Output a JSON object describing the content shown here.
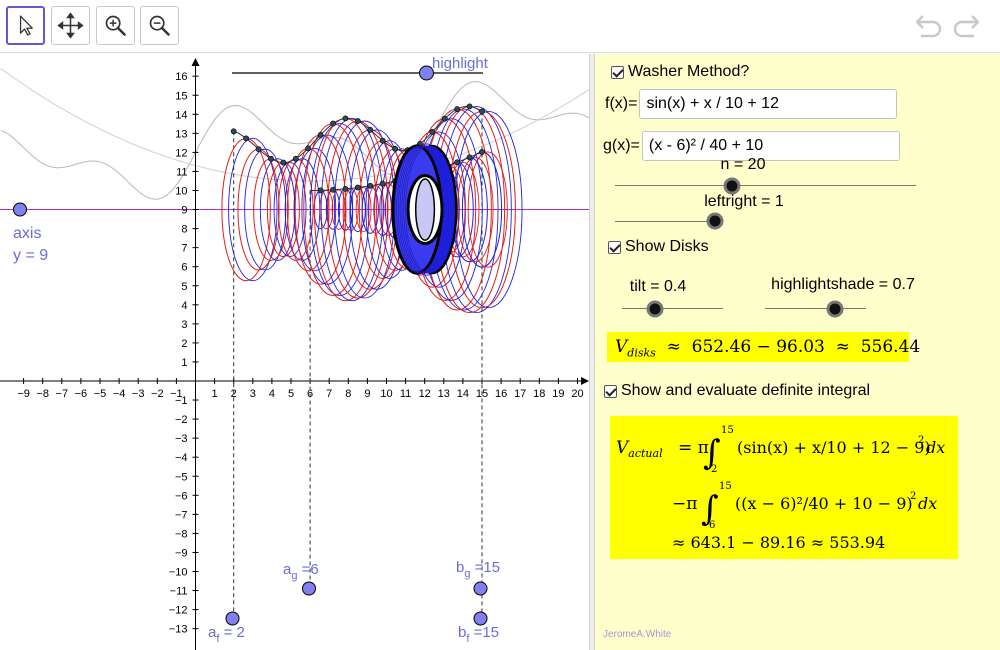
{
  "toolbar": {
    "tools": [
      {
        "name": "move-tool",
        "icon": "arrow-cursor-icon",
        "active": true
      },
      {
        "name": "move-graphics-tool",
        "icon": "four-way-arrow-icon",
        "active": false
      },
      {
        "name": "zoom-in-tool",
        "icon": "zoom-in-icon",
        "active": false
      },
      {
        "name": "zoom-out-tool",
        "icon": "zoom-out-icon",
        "active": false
      }
    ],
    "history": [
      "undo-icon",
      "redo-icon"
    ]
  },
  "graphics": {
    "x_ticks": [
      "−9",
      "−8",
      "−7",
      "−6",
      "−5",
      "−4",
      "−3",
      "−2",
      "−1",
      "1",
      "2",
      "3",
      "4",
      "5",
      "6",
      "7",
      "8",
      "9",
      "10",
      "11",
      "12",
      "13",
      "14",
      "15",
      "16",
      "17",
      "18",
      "19",
      "20"
    ],
    "y_ticks": [
      "16",
      "15",
      "14",
      "13",
      "12",
      "11",
      "10",
      "9",
      "8",
      "7",
      "6",
      "5",
      "4",
      "3",
      "2",
      "1",
      "−1",
      "−2",
      "−3",
      "−4",
      "−5",
      "−6",
      "−7",
      "−8",
      "−9",
      "−10",
      "−11",
      "−12",
      "−13"
    ],
    "axis_label": "axis",
    "axis_equation": "y = 9",
    "highlight_label": "highlight",
    "af_label": "a",
    "af_sub": "f",
    "af_value": " = 2",
    "ag_label": "a",
    "ag_sub": "g",
    "ag_value": " =6",
    "bg_label": "b",
    "bg_sub": "g",
    "bg_value": " =15",
    "bf_label": "b",
    "bf_sub": "f",
    "bf_value": " =15",
    "colors": {
      "outer": "#e01f1f",
      "inner": "#2222dd",
      "axis": "#b030c0",
      "point": "#8080f0",
      "highlight": "#2020ee"
    }
  },
  "panel": {
    "washer_label": "Washer Method?",
    "fx_label": "f(x)=",
    "fx_value": "sin(x) + x / 10 + 12",
    "gx_label": "g(x)=",
    "gx_value": "(x - 6)² / 40 + 10",
    "n_label": "n = 20",
    "leftright_label": "leftright = 1",
    "show_disks_label": "Show Disks",
    "tilt_label": "tilt = 0.4",
    "highlightshade_label": "highlightshade = 0.7",
    "vdisks_V": "V",
    "vdisks_sub": "disks",
    "vdisks_rest": "  ≈  652.46 − 96.03  ≈  556.44",
    "show_integral_label": "Show and evaluate definite integral",
    "vactual_V": "V",
    "vactual_sub": "actual",
    "line1_rest": " = π",
    "int1_upper": "15",
    "int1_lower": "2",
    "line1_integrand": "(sin(x) + x/10 + 12 − 9)",
    "line1_pow": "2",
    "line1_dx": "dx",
    "line2_prefix": "−π",
    "int2_upper": "15",
    "int2_lower": "6",
    "line2_integrand": "((x − 6)²/40 + 10 − 9)",
    "line2_pow": "2",
    "line2_dx": "dx",
    "line3": "≈ 643.1 − 89.16 ≈ 553.94",
    "credit": "JeromeA.White"
  }
}
